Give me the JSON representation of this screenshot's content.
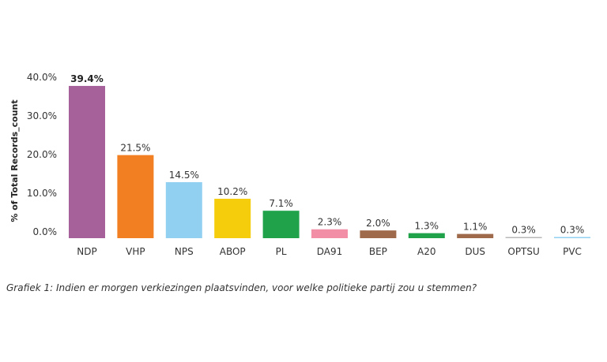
{
  "chart_data": {
    "type": "bar",
    "categories": [
      "NDP",
      "VHP",
      "NPS",
      "ABOP",
      "PL",
      "DA91",
      "BEP",
      "A20",
      "DUS",
      "OPTSU",
      "PVC"
    ],
    "values": [
      39.4,
      21.5,
      14.5,
      10.2,
      7.1,
      2.3,
      2.0,
      1.3,
      1.1,
      0.3,
      0.3
    ],
    "value_labels": [
      "39.4%",
      "21.5%",
      "14.5%",
      "10.2%",
      "7.1%",
      "2.3%",
      "2.0%",
      "1.3%",
      "1.1%",
      "0.3%",
      "0.3%"
    ],
    "colors": [
      "#a6619a",
      "#f28022",
      "#92d0f2",
      "#f5cd0d",
      "#1fa24a",
      "#f28fa6",
      "#9e6a4b",
      "#1fa24a",
      "#9e6a4b",
      "#b8b8b8",
      "#92d0f2"
    ],
    "ylabel": "% of Total Records_count",
    "yticks": [
      0,
      10,
      20,
      30,
      40
    ],
    "ytick_labels": [
      "0.0%",
      "10.0%",
      "20.0%",
      "30.0%",
      "40.0%"
    ],
    "ylim": [
      0,
      40
    ],
    "grid": false,
    "legend": "none"
  },
  "caption": "Grafiek 1: Indien er morgen verkiezingen plaatsvinden, voor welke politieke partij zou u stemmen?"
}
